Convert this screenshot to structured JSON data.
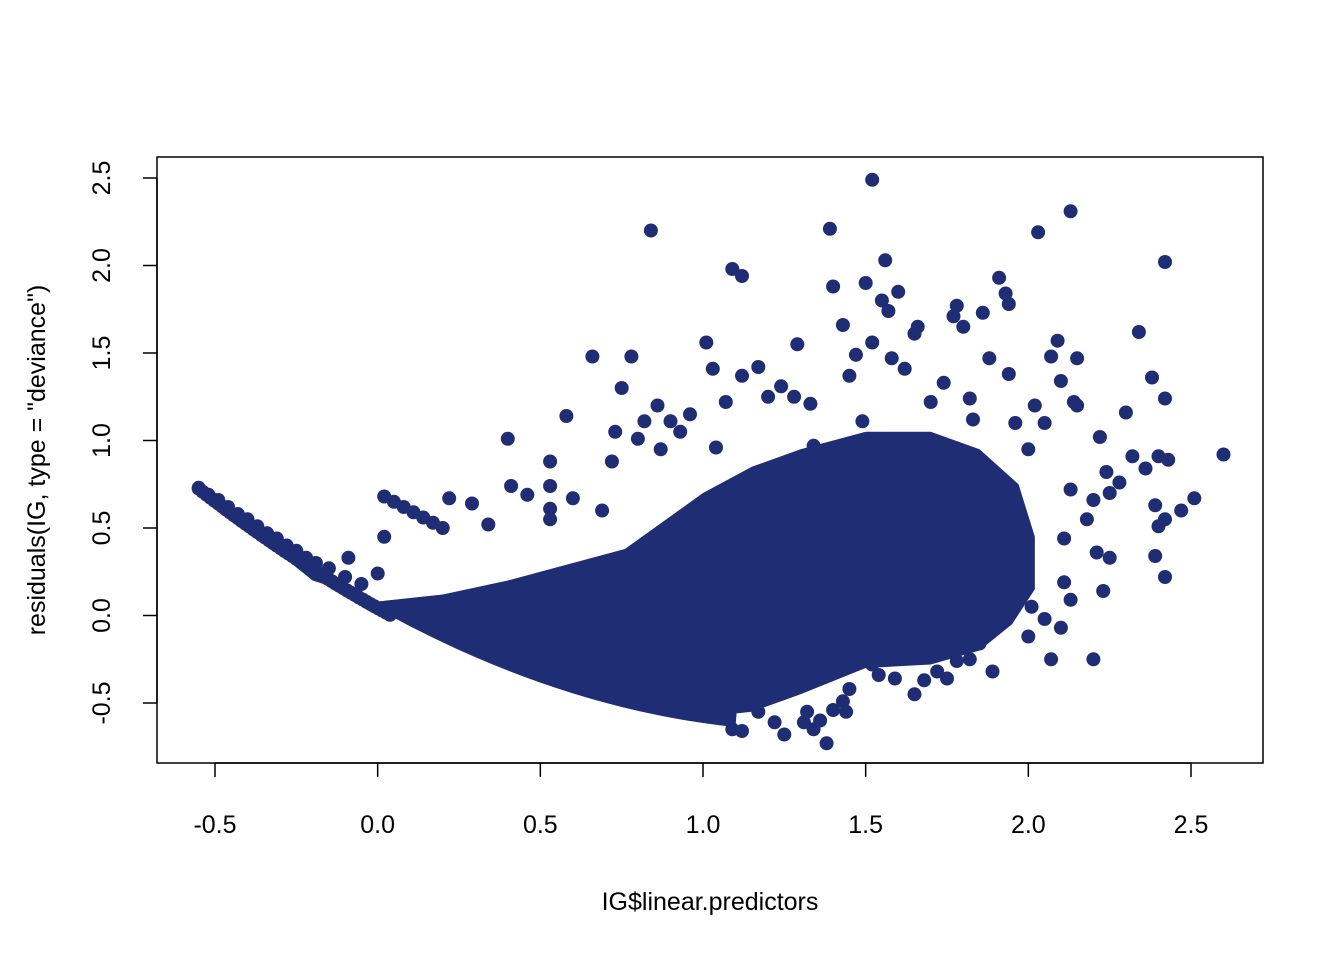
{
  "chart_data": {
    "type": "scatter",
    "title": "",
    "xlabel": "IG$linear.predictors",
    "ylabel": "residuals(IG, type = \"deviance\")",
    "xlim": [
      -0.7,
      2.7
    ],
    "ylim": [
      -0.8,
      2.6
    ],
    "xticks": [
      -0.5,
      0.0,
      0.5,
      1.0,
      1.5,
      2.0,
      2.5
    ],
    "xtick_labels": [
      "-0.5",
      "0.0",
      "0.5",
      "1.0",
      "1.5",
      "2.0",
      "2.5"
    ],
    "yticks": [
      -0.5,
      0.0,
      0.5,
      1.0,
      1.5,
      2.0,
      2.5
    ],
    "ytick_labels": [
      "-0.5",
      "0.0",
      "0.5",
      "1.0",
      "1.5",
      "2.0",
      "2.5"
    ],
    "grid": false,
    "legend": "none",
    "point_color": "#1f2d75",
    "points": [
      [
        -0.55,
        0.73
      ],
      [
        -0.52,
        0.69
      ],
      [
        -0.49,
        0.66
      ],
      [
        -0.46,
        0.62
      ],
      [
        -0.43,
        0.58
      ],
      [
        -0.4,
        0.55
      ],
      [
        -0.37,
        0.51
      ],
      [
        -0.34,
        0.47
      ],
      [
        -0.31,
        0.44
      ],
      [
        -0.28,
        0.4
      ],
      [
        -0.25,
        0.37
      ],
      [
        -0.22,
        0.33
      ],
      [
        -0.19,
        0.3
      ],
      [
        -0.15,
        0.27
      ],
      [
        -0.1,
        0.22
      ],
      [
        -0.09,
        0.33
      ],
      [
        -0.05,
        0.18
      ],
      [
        0.0,
        0.24
      ],
      [
        0.02,
        0.68
      ],
      [
        0.02,
        0.45
      ],
      [
        0.05,
        0.65
      ],
      [
        0.08,
        0.62
      ],
      [
        0.11,
        0.59
      ],
      [
        0.14,
        0.56
      ],
      [
        0.17,
        0.53
      ],
      [
        0.2,
        0.5
      ],
      [
        0.22,
        0.67
      ],
      [
        0.29,
        0.64
      ],
      [
        0.34,
        0.52
      ],
      [
        0.4,
        1.01
      ],
      [
        0.41,
        0.74
      ],
      [
        0.46,
        0.69
      ],
      [
        0.53,
        0.74
      ],
      [
        0.53,
        0.61
      ],
      [
        0.53,
        0.55
      ],
      [
        0.53,
        0.88
      ],
      [
        0.58,
        1.14
      ],
      [
        0.6,
        0.67
      ],
      [
        0.66,
        1.48
      ],
      [
        0.69,
        0.6
      ],
      [
        0.72,
        0.88
      ],
      [
        0.73,
        1.05
      ],
      [
        0.75,
        1.3
      ],
      [
        0.78,
        1.48
      ],
      [
        0.8,
        1.01
      ],
      [
        0.82,
        1.11
      ],
      [
        0.84,
        2.2
      ],
      [
        0.86,
        1.2
      ],
      [
        0.87,
        0.95
      ],
      [
        0.9,
        1.11
      ],
      [
        0.93,
        1.05
      ],
      [
        0.96,
        1.15
      ],
      [
        1.01,
        1.56
      ],
      [
        1.03,
        1.41
      ],
      [
        1.04,
        0.96
      ],
      [
        1.07,
        1.22
      ],
      [
        1.09,
        1.98
      ],
      [
        1.12,
        1.94
      ],
      [
        1.12,
        1.37
      ],
      [
        1.17,
        1.42
      ],
      [
        1.2,
        1.25
      ],
      [
        1.24,
        1.31
      ],
      [
        1.28,
        1.25
      ],
      [
        1.29,
        1.55
      ],
      [
        1.33,
        1.21
      ],
      [
        1.34,
        0.97
      ],
      [
        1.39,
        2.21
      ],
      [
        1.4,
        1.88
      ],
      [
        1.43,
        1.66
      ],
      [
        1.45,
        1.37
      ],
      [
        1.47,
        1.49
      ],
      [
        1.49,
        1.11
      ],
      [
        1.52,
        2.49
      ],
      [
        1.5,
        1.9
      ],
      [
        1.52,
        1.56
      ],
      [
        1.55,
        1.8
      ],
      [
        1.56,
        2.03
      ],
      [
        1.57,
        1.74
      ],
      [
        1.58,
        1.47
      ],
      [
        1.6,
        1.85
      ],
      [
        1.62,
        1.41
      ],
      [
        1.65,
        1.61
      ],
      [
        1.66,
        1.65
      ],
      [
        1.7,
        1.22
      ],
      [
        1.74,
        1.33
      ],
      [
        1.77,
        1.71
      ],
      [
        1.78,
        1.77
      ],
      [
        1.8,
        1.65
      ],
      [
        1.82,
        1.24
      ],
      [
        1.83,
        1.12
      ],
      [
        1.86,
        1.73
      ],
      [
        1.88,
        1.47
      ],
      [
        1.91,
        1.93
      ],
      [
        1.93,
        1.84
      ],
      [
        1.94,
        1.78
      ],
      [
        1.94,
        1.38
      ],
      [
        1.96,
        1.1
      ],
      [
        2.0,
        0.95
      ],
      [
        2.02,
        1.2
      ],
      [
        2.03,
        2.19
      ],
      [
        2.05,
        1.1
      ],
      [
        2.07,
        1.48
      ],
      [
        2.09,
        1.57
      ],
      [
        2.1,
        1.34
      ],
      [
        2.13,
        2.31
      ],
      [
        2.14,
        1.22
      ],
      [
        2.15,
        1.2
      ],
      [
        2.15,
        1.47
      ],
      [
        2.22,
        1.02
      ],
      [
        2.24,
        0.82
      ],
      [
        2.25,
        0.7
      ],
      [
        2.28,
        0.76
      ],
      [
        2.3,
        1.16
      ],
      [
        2.32,
        0.91
      ],
      [
        2.34,
        1.62
      ],
      [
        2.36,
        0.84
      ],
      [
        2.38,
        1.36
      ],
      [
        2.4,
        0.91
      ],
      [
        2.42,
        2.02
      ],
      [
        2.42,
        1.24
      ],
      [
        2.43,
        0.89
      ],
      [
        2.39,
        0.63
      ],
      [
        2.4,
        0.51
      ],
      [
        2.42,
        0.55
      ],
      [
        2.42,
        0.22
      ],
      [
        2.39,
        0.34
      ],
      [
        2.47,
        0.6
      ],
      [
        2.51,
        0.67
      ],
      [
        2.6,
        0.92
      ],
      [
        2.23,
        0.14
      ],
      [
        2.25,
        0.33
      ],
      [
        2.21,
        0.36
      ],
      [
        2.18,
        0.55
      ],
      [
        2.2,
        0.66
      ],
      [
        2.13,
        0.72
      ],
      [
        2.11,
        0.44
      ],
      [
        2.11,
        0.19
      ],
      [
        2.13,
        0.09
      ],
      [
        2.1,
        -0.07
      ],
      [
        2.05,
        -0.02
      ],
      [
        2.01,
        0.05
      ],
      [
        2.0,
        -0.12
      ],
      [
        2.07,
        -0.25
      ],
      [
        2.2,
        -0.25
      ],
      [
        1.92,
        0.12
      ],
      [
        1.89,
        -0.32
      ],
      [
        1.85,
        -0.16
      ],
      [
        1.82,
        -0.25
      ],
      [
        1.78,
        -0.26
      ],
      [
        1.75,
        -0.36
      ],
      [
        1.72,
        -0.32
      ],
      [
        1.68,
        -0.37
      ],
      [
        1.65,
        -0.45
      ],
      [
        1.59,
        -0.36
      ],
      [
        1.54,
        -0.34
      ],
      [
        1.52,
        -0.28
      ],
      [
        1.45,
        -0.42
      ],
      [
        1.43,
        -0.49
      ],
      [
        1.4,
        -0.54
      ],
      [
        1.38,
        -0.73
      ],
      [
        1.34,
        -0.65
      ],
      [
        1.31,
        -0.61
      ],
      [
        1.25,
        -0.68
      ],
      [
        1.22,
        -0.61
      ],
      [
        1.17,
        -0.55
      ],
      [
        1.12,
        -0.66
      ],
      [
        1.09,
        -0.65
      ],
      [
        1.32,
        -0.55
      ],
      [
        1.36,
        -0.6
      ],
      [
        1.44,
        -0.55
      ]
    ],
    "dense_regions": [
      {
        "x_from": -0.55,
        "x_to": 1.15,
        "lower_curve": true,
        "upper": [
          [
            -0.55,
            0.72
          ],
          [
            -0.3,
            0.32
          ],
          [
            0.0,
            0.15
          ],
          [
            0.3,
            0.2
          ],
          [
            0.6,
            0.35
          ],
          [
            0.9,
            0.55
          ],
          [
            1.15,
            0.75
          ]
        ]
      },
      {
        "x_from": 0.9,
        "x_to": 2.05,
        "cluster": true
      }
    ]
  }
}
